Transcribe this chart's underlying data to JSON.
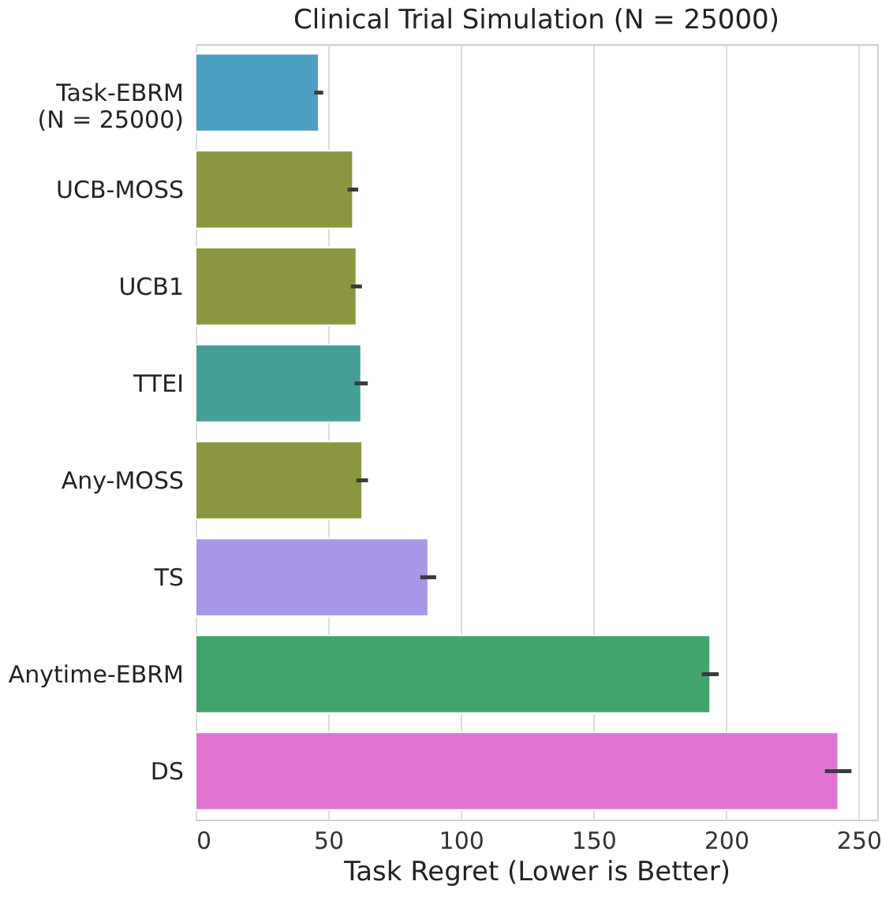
{
  "chart_data": {
    "type": "bar",
    "orientation": "horizontal",
    "title": "Clinical Trial Simulation (N = 25000)",
    "xlabel": "Task Regret (Lower is Better)",
    "categories": [
      "Task-EBRM\n(N = 25000)",
      "UCB-MOSS",
      "UCB1",
      "TTEI",
      "Any-MOSS",
      "TS",
      "Anytime-EBRM",
      "DS"
    ],
    "values": [
      46.4,
      59.3,
      60.6,
      62.4,
      62.8,
      87.7,
      194,
      242.3
    ],
    "errors": [
      1.7,
      2,
      2.1,
      2.5,
      2.2,
      3,
      3.2,
      5
    ],
    "colors": [
      "#4ba0c0",
      "#8c9640",
      "#8c9640",
      "#44a096",
      "#8c9640",
      "#a896e6",
      "#42a46a",
      "#e074d0"
    ],
    "xlim": [
      0,
      257
    ],
    "xticks": [
      0,
      50,
      100,
      150,
      200,
      250
    ],
    "grid": "x"
  }
}
